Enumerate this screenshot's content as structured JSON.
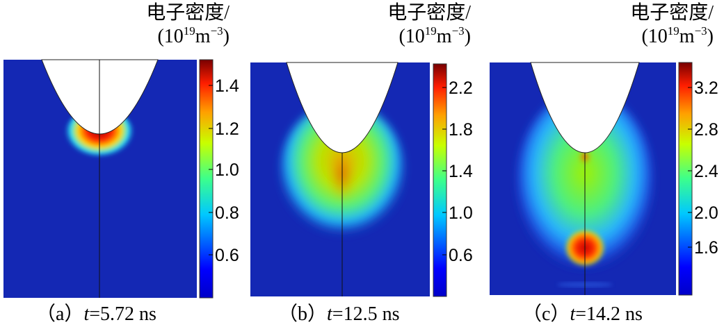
{
  "panels": [
    {
      "unit_label": "电子密度/",
      "unit_base": "(10",
      "unit_exp": "19",
      "unit_rest": "m",
      "unit_rest_exp": "−3",
      "unit_close": ")",
      "caption_prefix": "（a）",
      "caption_var": "t",
      "caption_value": "=5.72 ns",
      "colorbar_ticks": [
        "1.4",
        "1.2",
        "1.0",
        "0.8",
        "0.6"
      ],
      "colorbar_range": [
        0.4,
        1.5
      ]
    },
    {
      "unit_label": "电子密度/",
      "unit_base": "(10",
      "unit_exp": "19",
      "unit_rest": "m",
      "unit_rest_exp": "−3",
      "unit_close": ")",
      "caption_prefix": "（b）",
      "caption_var": "t",
      "caption_value": "=12.5 ns",
      "colorbar_ticks": [
        "2.2",
        "1.8",
        "1.4",
        "1.0",
        "0.6"
      ],
      "colorbar_range": [
        0.2,
        2.4
      ]
    },
    {
      "unit_label": "电子密度/",
      "unit_base": "(10",
      "unit_exp": "19",
      "unit_rest": "m",
      "unit_rest_exp": "−3",
      "unit_close": ")",
      "caption_prefix": "（c）",
      "caption_var": "t",
      "caption_value": "=14.2 ns",
      "colorbar_ticks": [
        "3.2",
        "2.8",
        "2.4",
        "2.0",
        "1.6"
      ],
      "colorbar_range": [
        1.2,
        3.45
      ]
    }
  ],
  "colors": {
    "background_field": "#1428b4",
    "colormap": [
      "#00008f",
      "#0000ff",
      "#00ffff",
      "#00ff00",
      "#ffff00",
      "#ff0000",
      "#800000"
    ]
  }
}
